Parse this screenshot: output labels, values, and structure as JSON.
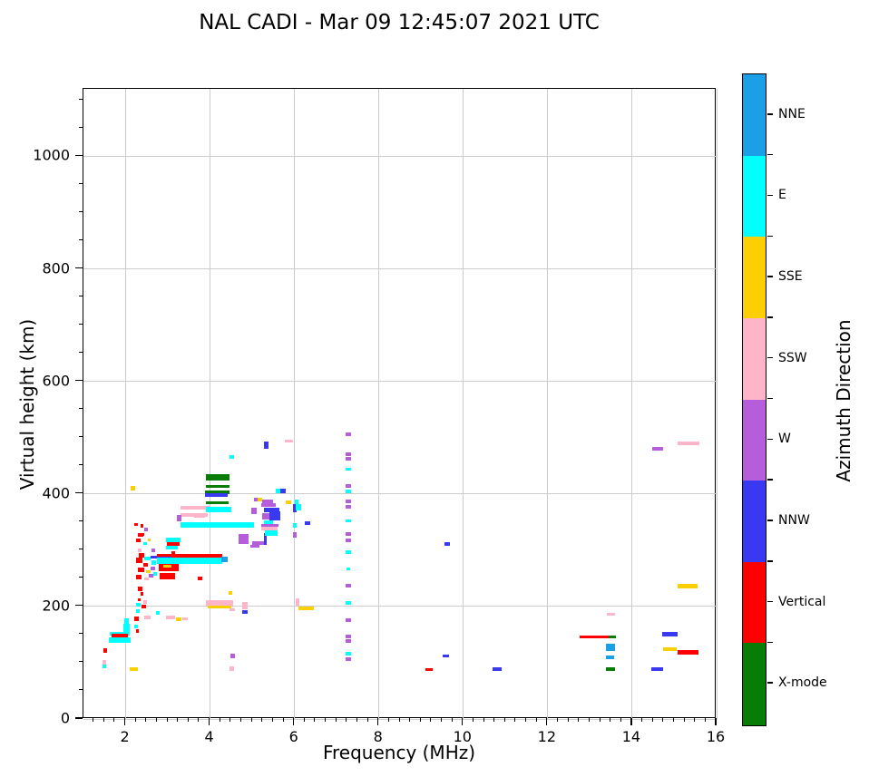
{
  "figure": {
    "title": "NAL CADI - Mar 09 12:45:07 2021 UTC"
  },
  "chart_data": {
    "type": "scatter",
    "title": "NAL CADI - Mar 09 12:45:07 2021 UTC",
    "xlabel": "Frequency (MHz)",
    "ylabel": "Virtual height (km)",
    "xlim": [
      1,
      16
    ],
    "ylim": [
      0,
      1120
    ],
    "xticks": [
      2,
      4,
      6,
      8,
      10,
      12,
      14,
      16
    ],
    "yticks": [
      0,
      200,
      400,
      600,
      800,
      1000
    ],
    "x_minor_step": 0.25,
    "y_minor_step": 50,
    "grid": true,
    "legend": {
      "title": "Azimuth Direction",
      "position": "right-colorbar",
      "entries": [
        {
          "label": "NNE",
          "color": "#1ba0e8"
        },
        {
          "label": "E",
          "color": "#00ffff"
        },
        {
          "label": "SSE",
          "color": "#fccf03"
        },
        {
          "label": "SSW",
          "color": "#ffb5c9"
        },
        {
          "label": "W",
          "color": "#b55ddb"
        },
        {
          "label": "NNW",
          "color": "#3a39f2"
        },
        {
          "label": "Vertical",
          "color": "#fe0000"
        },
        {
          "label": "X-mode",
          "color": "#077d06"
        }
      ]
    },
    "echo_format": "[freq_start_MHz, freq_end_MHz, virtual_height_km, azimuth_direction, thickness_km]",
    "echoes": [
      [
        1.45,
        1.53,
        100,
        "SSW",
        8
      ],
      [
        1.45,
        1.53,
        93,
        "E",
        7
      ],
      [
        1.47,
        1.56,
        122,
        "Vertical",
        9
      ],
      [
        1.62,
        2.1,
        152,
        "E",
        7
      ],
      [
        1.66,
        2.06,
        147,
        "Vertical",
        8
      ],
      [
        1.6,
        2.12,
        140,
        "E",
        9
      ],
      [
        1.95,
        2.1,
        162,
        "E",
        14
      ],
      [
        1.97,
        2.08,
        174,
        "E",
        9
      ],
      [
        2.2,
        2.32,
        178,
        "Vertical",
        8
      ],
      [
        2.43,
        2.58,
        180,
        "SSW",
        7
      ],
      [
        2.2,
        2.3,
        164,
        "E",
        7
      ],
      [
        2.24,
        2.31,
        156,
        "Vertical",
        6
      ],
      [
        2.1,
        2.28,
        89,
        "SSE",
        6
      ],
      [
        2.95,
        3.18,
        181,
        "SSW",
        6
      ],
      [
        3.2,
        3.32,
        177,
        "SSE",
        7
      ],
      [
        2.25,
        2.33,
        192,
        "E",
        6
      ],
      [
        2.72,
        2.8,
        188,
        "E",
        6
      ],
      [
        2.78,
        3.25,
        271,
        "Vertical",
        16
      ],
      [
        2.8,
        3.17,
        254,
        "Vertical",
        12
      ],
      [
        2.9,
        3.08,
        272,
        "SSE",
        5
      ],
      [
        2.95,
        3.3,
        318,
        "E",
        8
      ],
      [
        2.97,
        3.28,
        311,
        "Vertical",
        6
      ],
      [
        2.95,
        3.24,
        304,
        "E",
        6
      ],
      [
        2.75,
        4.28,
        290,
        "Vertical",
        5
      ],
      [
        2.75,
        3.1,
        286,
        "NNW",
        5
      ],
      [
        2.73,
        4.28,
        281,
        "E",
        12
      ],
      [
        4.26,
        4.42,
        283,
        "NNE",
        10
      ],
      [
        2.3,
        2.42,
        327,
        "Vertical",
        7
      ],
      [
        2.25,
        2.35,
        317,
        "Vertical",
        6
      ],
      [
        2.42,
        2.5,
        312,
        "E",
        6
      ],
      [
        2.28,
        2.38,
        300,
        "SSW",
        6
      ],
      [
        2.32,
        2.45,
        291,
        "Vertical",
        7
      ],
      [
        2.24,
        2.4,
        282,
        "Vertical",
        10
      ],
      [
        2.45,
        2.58,
        285,
        "E",
        6
      ],
      [
        2.42,
        2.52,
        274,
        "Vertical",
        6
      ],
      [
        2.3,
        2.45,
        265,
        "Vertical",
        8
      ],
      [
        2.48,
        2.6,
        262,
        "SSE",
        6
      ],
      [
        2.25,
        2.38,
        252,
        "Vertical",
        8
      ],
      [
        2.45,
        2.55,
        249,
        "SSW",
        6
      ],
      [
        2.55,
        2.65,
        255,
        "W",
        6
      ],
      [
        2.62,
        2.7,
        300,
        "W",
        6
      ],
      [
        2.52,
        2.6,
        318,
        "SSE",
        5
      ],
      [
        2.6,
        2.75,
        287,
        "NNW",
        5
      ],
      [
        2.62,
        2.72,
        278,
        "E",
        8
      ],
      [
        2.6,
        2.7,
        268,
        "W",
        6
      ],
      [
        2.65,
        2.75,
        258,
        "E",
        6
      ],
      [
        2.3,
        2.4,
        232,
        "Vertical",
        8
      ],
      [
        2.35,
        2.42,
        222,
        "Vertical",
        6
      ],
      [
        2.28,
        2.36,
        212,
        "Vertical",
        6
      ],
      [
        2.42,
        2.5,
        208,
        "SSW",
        6
      ],
      [
        2.25,
        2.35,
        203,
        "E",
        6
      ],
      [
        2.38,
        2.48,
        200,
        "Vertical",
        6
      ],
      [
        3.08,
        3.18,
        295,
        "Vertical",
        6
      ],
      [
        2.35,
        2.42,
        343,
        "Vertical",
        6
      ],
      [
        2.45,
        2.52,
        337,
        "W",
        6
      ],
      [
        2.35,
        2.45,
        328,
        "Vertical",
        6
      ],
      [
        2.2,
        2.28,
        345,
        "Vertical",
        5
      ],
      [
        2.12,
        2.22,
        410,
        "SSE",
        8
      ],
      [
        3.7,
        3.82,
        250,
        "Vertical",
        6
      ],
      [
        3.3,
        4.0,
        376,
        "SSW",
        6
      ],
      [
        3.3,
        3.95,
        363,
        "SSW",
        6
      ],
      [
        3.22,
        3.33,
        357,
        "W",
        12
      ],
      [
        3.3,
        5.05,
        345,
        "E",
        11
      ],
      [
        3.9,
        4.46,
        430,
        "X-mode",
        11
      ],
      [
        3.9,
        4.45,
        413,
        "X-mode",
        5
      ],
      [
        3.88,
        4.45,
        403,
        "X-mode",
        6
      ],
      [
        3.88,
        4.42,
        398,
        "NNW",
        5
      ],
      [
        3.9,
        4.44,
        385,
        "X-mode",
        5
      ],
      [
        3.9,
        4.5,
        372,
        "E",
        10
      ],
      [
        3.65,
        3.9,
        375,
        "SSW",
        6
      ],
      [
        3.63,
        3.88,
        360,
        "SSW",
        6
      ],
      [
        3.9,
        4.55,
        206,
        "SSW",
        11
      ],
      [
        3.94,
        4.5,
        199,
        "SSE",
        5
      ],
      [
        4.43,
        4.53,
        224,
        "SSE",
        5
      ],
      [
        4.46,
        4.58,
        194,
        "SSW",
        5
      ],
      [
        4.47,
        4.57,
        466,
        "E",
        7
      ],
      [
        3.35,
        3.48,
        178,
        "SSW",
        5
      ],
      [
        4.68,
        4.92,
        320,
        "W",
        18
      ],
      [
        5.0,
        5.3,
        313,
        "W",
        7
      ],
      [
        4.95,
        5.16,
        307,
        "W",
        6
      ],
      [
        5.27,
        5.35,
        320,
        "NNW",
        22
      ],
      [
        5.3,
        5.6,
        330,
        "E",
        9
      ],
      [
        4.98,
        5.1,
        370,
        "W",
        12
      ],
      [
        5.22,
        5.6,
        338,
        "SSW",
        6
      ],
      [
        5.22,
        5.62,
        344,
        "W",
        6
      ],
      [
        5.27,
        5.5,
        350,
        "E",
        6
      ],
      [
        5.4,
        5.66,
        361,
        "NNW",
        16
      ],
      [
        5.24,
        5.4,
        360,
        "W",
        12
      ],
      [
        5.27,
        5.65,
        372,
        "NNW",
        8
      ],
      [
        5.22,
        5.55,
        380,
        "W",
        7
      ],
      [
        5.24,
        5.5,
        387,
        "W",
        6
      ],
      [
        5.05,
        5.16,
        390,
        "W",
        6
      ],
      [
        5.12,
        5.24,
        390,
        "SSE",
        5
      ],
      [
        5.8,
        5.93,
        385,
        "SSE",
        6
      ],
      [
        5.55,
        5.7,
        405,
        "E",
        8
      ],
      [
        5.67,
        5.8,
        406,
        "NNW",
        8
      ],
      [
        5.97,
        6.06,
        375,
        "NNW",
        14
      ],
      [
        6.03,
        6.16,
        376,
        "E",
        12
      ],
      [
        6.0,
        6.1,
        386,
        "E",
        7
      ],
      [
        6.25,
        6.38,
        348,
        "NNW",
        6
      ],
      [
        5.97,
        6.05,
        344,
        "E",
        7
      ],
      [
        5.97,
        6.05,
        327,
        "W",
        10
      ],
      [
        5.78,
        5.96,
        494,
        "SSW",
        6
      ],
      [
        5.28,
        5.39,
        486,
        "NNW",
        13
      ],
      [
        6.02,
        6.11,
        208,
        "SSW",
        13
      ],
      [
        6.1,
        6.46,
        197,
        "SSE",
        6
      ],
      [
        4.75,
        4.89,
        201,
        "SSW",
        13
      ],
      [
        4.75,
        4.9,
        190,
        "NNW",
        6
      ],
      [
        4.48,
        4.58,
        112,
        "W",
        8
      ],
      [
        4.46,
        4.56,
        89,
        "SSW",
        8
      ],
      [
        7.22,
        7.34,
        506,
        "W",
        7
      ],
      [
        7.22,
        7.34,
        470,
        "W",
        6
      ],
      [
        7.22,
        7.34,
        463,
        "W",
        6
      ],
      [
        7.22,
        7.34,
        444,
        "E",
        6
      ],
      [
        7.22,
        7.34,
        414,
        "W",
        6
      ],
      [
        7.22,
        7.33,
        404,
        "E",
        6
      ],
      [
        7.22,
        7.34,
        387,
        "W",
        6
      ],
      [
        7.22,
        7.34,
        377,
        "W",
        6
      ],
      [
        7.22,
        7.33,
        352,
        "E",
        6
      ],
      [
        7.22,
        7.34,
        329,
        "W",
        6
      ],
      [
        7.22,
        7.34,
        318,
        "W",
        6
      ],
      [
        7.22,
        7.33,
        297,
        "E",
        6
      ],
      [
        7.23,
        7.31,
        266,
        "E",
        5
      ],
      [
        7.22,
        7.34,
        237,
        "W",
        6
      ],
      [
        7.22,
        7.33,
        206,
        "E",
        6
      ],
      [
        7.22,
        7.34,
        176,
        "W",
        6
      ],
      [
        7.22,
        7.34,
        147,
        "W",
        6
      ],
      [
        7.22,
        7.34,
        139,
        "W",
        6
      ],
      [
        7.22,
        7.33,
        116,
        "E",
        6
      ],
      [
        7.22,
        7.34,
        106,
        "W",
        6
      ],
      [
        9.55,
        9.68,
        311,
        "NNW",
        6
      ],
      [
        9.1,
        9.28,
        88,
        "Vertical",
        6
      ],
      [
        9.5,
        9.66,
        112,
        "NNW",
        6
      ],
      [
        10.7,
        10.9,
        89,
        "NNW",
        6
      ],
      [
        12.75,
        13.45,
        146,
        "Vertical",
        6
      ],
      [
        13.45,
        13.62,
        146,
        "X-mode",
        6
      ],
      [
        13.4,
        13.6,
        186,
        "SSW",
        6
      ],
      [
        13.38,
        13.6,
        128,
        "NNE",
        13
      ],
      [
        13.38,
        13.58,
        110,
        "NNE",
        6
      ],
      [
        13.38,
        13.6,
        89,
        "X-mode",
        7
      ],
      [
        14.47,
        14.74,
        480,
        "W",
        6
      ],
      [
        15.07,
        15.6,
        490,
        "SSW",
        6
      ],
      [
        15.07,
        15.55,
        236,
        "SSE",
        8
      ],
      [
        14.7,
        15.08,
        151,
        "NNW",
        8
      ],
      [
        14.73,
        15.05,
        124,
        "SSE",
        7
      ],
      [
        15.07,
        15.58,
        118,
        "Vertical",
        8
      ],
      [
        14.45,
        14.73,
        89,
        "NNW",
        7
      ]
    ]
  }
}
